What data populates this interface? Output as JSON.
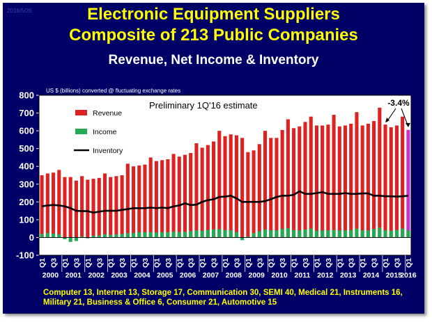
{
  "header": {
    "stamp": "2016/5/26",
    "title_line1": "Electronic Equipment Suppliers",
    "title_line2": "Composite of 213 Public Companies",
    "subtitle": "Revenue, Net Income & Inventory"
  },
  "footer": {
    "line1": "Computer 13, Internet 13, Storage 17, Communication 30, SEMI 40, Medical 21, Instruments 16,",
    "line2": "Military 21, Business & Office 6, Consumer 21, Automotive 15"
  },
  "colors": {
    "background": "#000066",
    "plot_background": "#ffffff",
    "revenue": "#dd2222",
    "revenue_estimate": "#cc33cc",
    "income": "#22aa55",
    "inventory": "#000000",
    "title": "#ffff00",
    "axis_text": "#ffffff"
  },
  "chart_data": {
    "type": "bar",
    "note": "US $ (billions) converted @ fluctuating exchange rates",
    "annotation": "Preliminary 1Q'16 estimate",
    "callout": "-3.4%",
    "ylim": [
      -100,
      800
    ],
    "yticks": [
      -100,
      0,
      100,
      200,
      300,
      400,
      500,
      600,
      700,
      800
    ],
    "grid": false,
    "legend_position": "top-left",
    "quarter_labels": [
      "Q1",
      "Q3"
    ],
    "years": [
      "2000",
      "2001",
      "2002",
      "2003",
      "2004",
      "2005",
      "2006",
      "2007",
      "2008",
      "2009",
      "2010",
      "2011",
      "2012",
      "2013",
      "2014",
      "2015",
      "2016"
    ],
    "series": [
      {
        "name": "Revenue",
        "type": "bar",
        "values": [
          350,
          360,
          365,
          380,
          340,
          340,
          320,
          345,
          325,
          330,
          335,
          360,
          340,
          345,
          350,
          415,
          400,
          405,
          410,
          450,
          430,
          435,
          440,
          470,
          455,
          465,
          475,
          530,
          505,
          520,
          540,
          600,
          570,
          580,
          575,
          560,
          480,
          490,
          525,
          600,
          560,
          560,
          605,
          665,
          615,
          625,
          650,
          680,
          630,
          630,
          635,
          690,
          625,
          630,
          640,
          705,
          630,
          640,
          655,
          730,
          635,
          620,
          630,
          680,
          605
        ]
      },
      {
        "name": "Income",
        "type": "bar",
        "values": [
          20,
          25,
          22,
          18,
          -10,
          -25,
          -20,
          5,
          -5,
          10,
          12,
          18,
          15,
          18,
          20,
          25,
          25,
          30,
          30,
          30,
          28,
          30,
          30,
          32,
          30,
          32,
          35,
          40,
          38,
          42,
          45,
          48,
          42,
          40,
          30,
          -15,
          5,
          25,
          35,
          45,
          40,
          40,
          48,
          52,
          42,
          40,
          45,
          50,
          38,
          40,
          40,
          42,
          40,
          40,
          42,
          50,
          40,
          40,
          48,
          55,
          40,
          38,
          42,
          50,
          40
        ]
      },
      {
        "name": "Inventory",
        "type": "line",
        "values": [
          175,
          180,
          183,
          180,
          175,
          165,
          150,
          148,
          148,
          140,
          145,
          150,
          150,
          150,
          155,
          160,
          165,
          165,
          165,
          168,
          165,
          168,
          165,
          175,
          180,
          192,
          182,
          185,
          200,
          210,
          215,
          228,
          230,
          235,
          220,
          200,
          200,
          200,
          200,
          205,
          215,
          228,
          235,
          235,
          240,
          260,
          245,
          245,
          250,
          255,
          245,
          245,
          245,
          250,
          245,
          245,
          248,
          248,
          235,
          235,
          232,
          232,
          230,
          232,
          235
        ]
      }
    ]
  }
}
